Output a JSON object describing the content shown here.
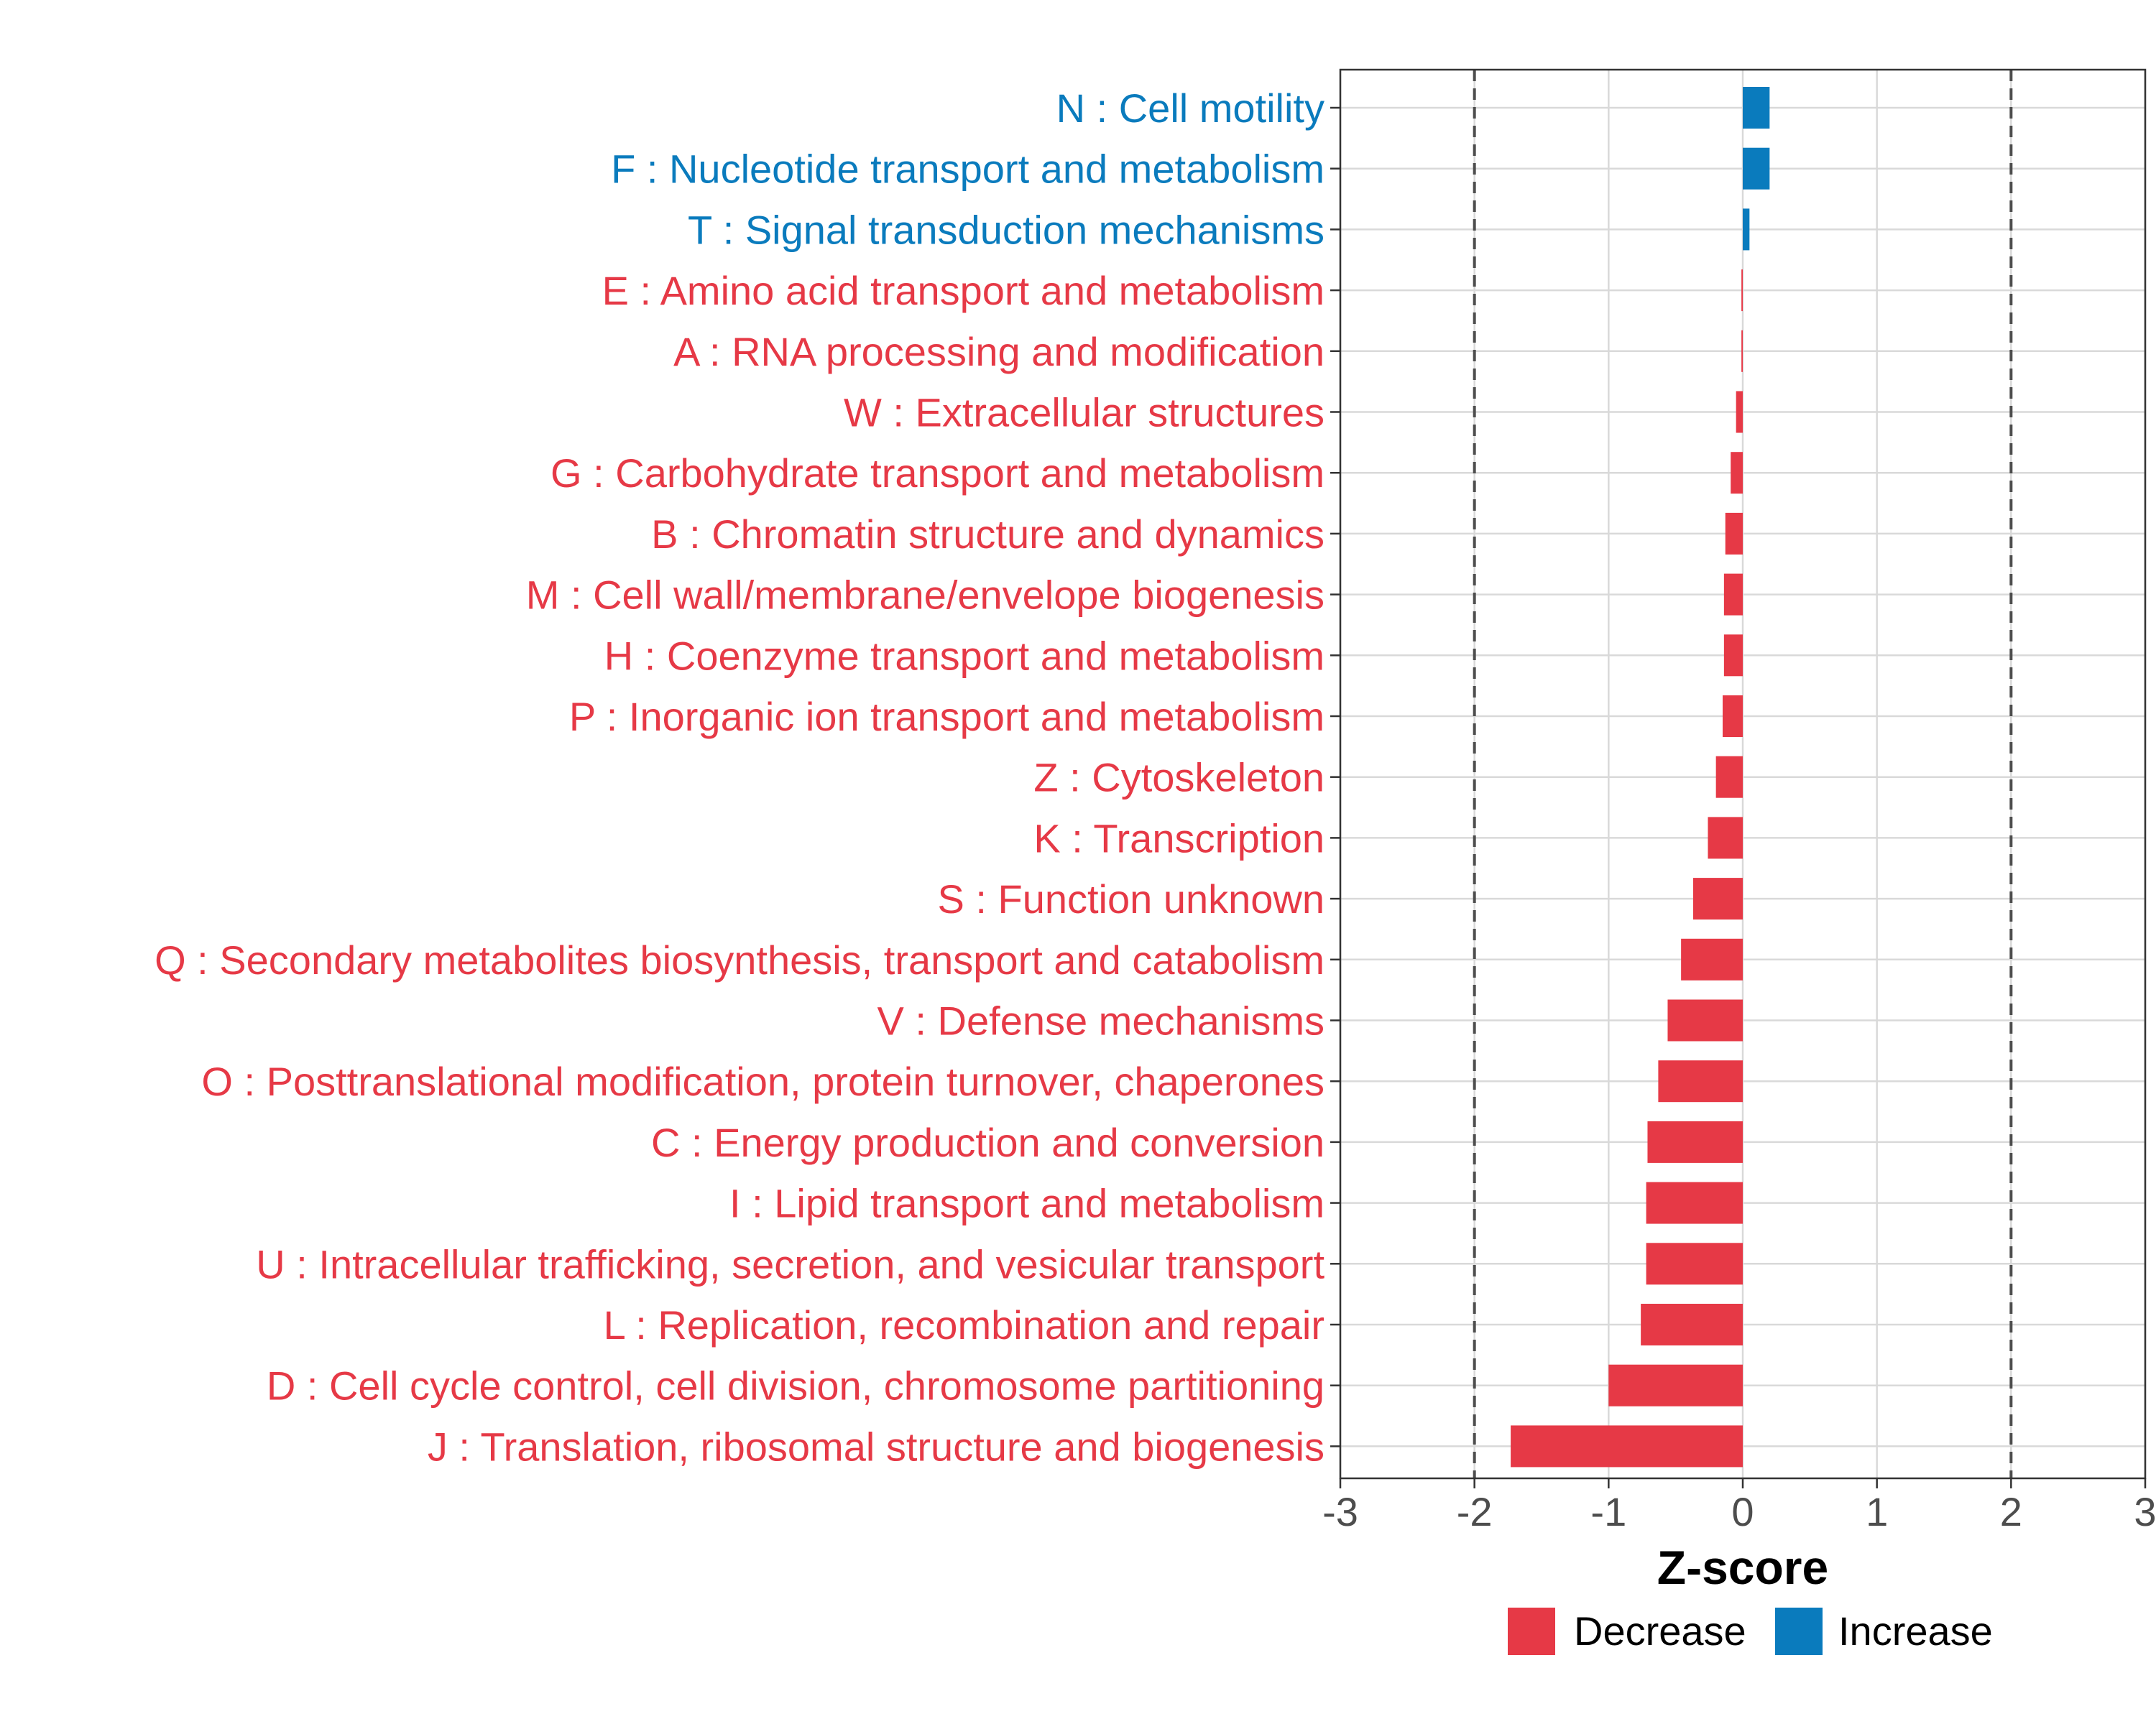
{
  "chart_data": {
    "type": "bar",
    "orientation": "horizontal",
    "xlabel": "Z-score",
    "xlim": [
      -3,
      3
    ],
    "xticks": [
      -3,
      -2,
      -1,
      0,
      1,
      2,
      3
    ],
    "xtick_labels": [
      "-3",
      "-2",
      "-1",
      "0",
      "1",
      "2",
      "3"
    ],
    "threshold_lines": [
      -2,
      2
    ],
    "colors": {
      "Decrease": "#e63946",
      "Increase": "#0a7bbd"
    },
    "categories": [
      "N : Cell motility",
      "F : Nucleotide transport and metabolism",
      "T : Signal transduction mechanisms",
      "E : Amino acid transport and metabolism",
      "A : RNA processing and modification",
      "W : Extracellular structures",
      "G : Carbohydrate transport and metabolism",
      "B : Chromatin structure and dynamics",
      "M : Cell wall/membrane/envelope biogenesis",
      "H : Coenzyme transport and metabolism",
      "P : Inorganic ion transport and metabolism",
      "Z : Cytoskeleton",
      "K : Transcription",
      "S : Function unknown",
      "Q : Secondary metabolites biosynthesis, transport and catabolism",
      "V : Defense mechanisms",
      "O : Posttranslational modification, protein turnover, chaperones",
      "C : Energy production and conversion",
      "I : Lipid transport and metabolism",
      "U : Intracellular trafficking, secretion, and vesicular transport",
      "L : Replication, recombination and repair",
      "D : Cell cycle control, cell division, chromosome partitioning",
      "J : Translation, ribosomal structure and biogenesis"
    ],
    "values": [
      0.2,
      0.2,
      0.05,
      -0.01,
      -0.01,
      -0.05,
      -0.09,
      -0.13,
      -0.14,
      -0.14,
      -0.15,
      -0.2,
      -0.26,
      -0.37,
      -0.46,
      -0.56,
      -0.63,
      -0.71,
      -0.72,
      -0.72,
      -0.76,
      -1.0,
      -1.73
    ],
    "groups": [
      "Increase",
      "Increase",
      "Increase",
      "Decrease",
      "Decrease",
      "Decrease",
      "Decrease",
      "Decrease",
      "Decrease",
      "Decrease",
      "Decrease",
      "Decrease",
      "Decrease",
      "Decrease",
      "Decrease",
      "Decrease",
      "Decrease",
      "Decrease",
      "Decrease",
      "Decrease",
      "Decrease",
      "Decrease",
      "Decrease"
    ],
    "legend": [
      "Decrease",
      "Increase"
    ],
    "legend_position": "bottom"
  }
}
